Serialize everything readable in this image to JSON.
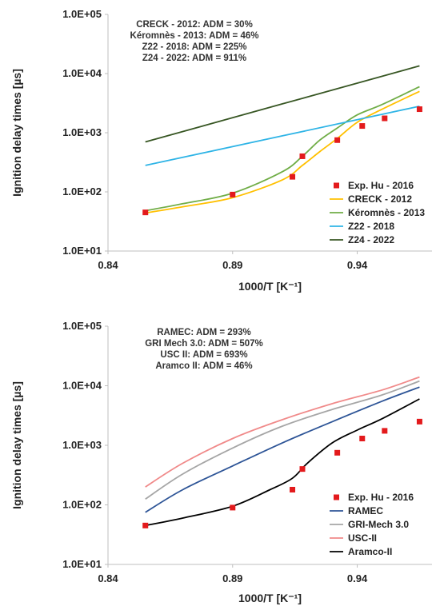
{
  "chart_data": [
    {
      "type": "line",
      "x_scale": "linear",
      "y_scale": "log",
      "xlim": [
        0.84,
        0.97
      ],
      "ylim": [
        10,
        100000
      ],
      "x_ticks": [
        "0.84",
        "0.89",
        "0.94"
      ],
      "x_tick_values": [
        0.84,
        0.89,
        0.94
      ],
      "y_ticks": [
        "1.0E+01",
        "1.0E+02",
        "1.0E+03",
        "1.0E+04",
        "1.0E+05"
      ],
      "y_tick_values": [
        10,
        100,
        1000,
        10000,
        100000
      ],
      "xlabel": "1000/T [K⁻¹]",
      "ylabel": "Ignition delay times [µs]",
      "grid": false,
      "legend_position": "right",
      "annotations": [
        "CRECK - 2012: ADM = 30%",
        "Kéromnès - 2013: ADM = 46%",
        "Z22 - 2018: ADM = 225%",
        "Z24 - 2022: ADM = 911%"
      ],
      "scatter": {
        "name": "Exp. Hu - 2016",
        "color": "#e31a1c",
        "x": [
          0.855,
          0.89,
          0.914,
          0.918,
          0.932,
          0.942,
          0.951,
          0.965
        ],
        "y": [
          45,
          90,
          180,
          400,
          750,
          1300,
          1750,
          2500
        ]
      },
      "series": [
        {
          "name": "CRECK - 2012",
          "color": "#ffc000",
          "x": [
            0.855,
            0.87,
            0.89,
            0.91,
            0.918,
            0.925,
            0.932,
            0.94,
            0.95,
            0.965
          ],
          "y": [
            44,
            56,
            80,
            160,
            280,
            480,
            800,
            1500,
            2500,
            5000
          ]
        },
        {
          "name": "Kéromnès - 2013",
          "color": "#70ad47",
          "x": [
            0.855,
            0.87,
            0.89,
            0.91,
            0.918,
            0.925,
            0.932,
            0.94,
            0.95,
            0.965
          ],
          "y": [
            48,
            63,
            95,
            220,
            400,
            750,
            1200,
            2000,
            3000,
            6000
          ]
        },
        {
          "name": "Z22 - 2018",
          "color": "#2fb4e6",
          "x": [
            0.855,
            0.965
          ],
          "y": [
            280,
            2800
          ]
        },
        {
          "name": "Z24 - 2022",
          "color": "#375623",
          "x": [
            0.855,
            0.965
          ],
          "y": [
            700,
            13500
          ]
        }
      ]
    },
    {
      "type": "line",
      "x_scale": "linear",
      "y_scale": "log",
      "xlim": [
        0.84,
        0.97
      ],
      "ylim": [
        10,
        100000
      ],
      "x_ticks": [
        "0.84",
        "0.89",
        "0.94"
      ],
      "x_tick_values": [
        0.84,
        0.89,
        0.94
      ],
      "y_ticks": [
        "1.0E+01",
        "1.0E+02",
        "1.0E+03",
        "1.0E+04",
        "1.0E+05"
      ],
      "y_tick_values": [
        10,
        100,
        1000,
        10000,
        100000
      ],
      "xlabel": "1000/T [K⁻¹]",
      "ylabel": "Ignition delay times [µs]",
      "grid": false,
      "legend_position": "bottom-right",
      "annotations": [
        "RAMEC: ADM = 293%",
        "GRI Mech 3.0: ADM = 507%",
        "USC II: ADM = 693%",
        "Aramco II: ADM = 46%"
      ],
      "scatter": {
        "name": "Exp. Hu - 2016",
        "color": "#e31a1c",
        "x": [
          0.855,
          0.89,
          0.914,
          0.918,
          0.932,
          0.942,
          0.951,
          0.965
        ],
        "y": [
          45,
          90,
          180,
          400,
          750,
          1300,
          1750,
          2500
        ]
      },
      "series": [
        {
          "name": "RAMEC",
          "color": "#2e5597",
          "x": [
            0.855,
            0.87,
            0.89,
            0.91,
            0.93,
            0.95,
            0.965
          ],
          "y": [
            75,
            180,
            450,
            1100,
            2500,
            5500,
            9500
          ]
        },
        {
          "name": "GRI-Mech 3.0",
          "color": "#a6a6a6",
          "x": [
            0.855,
            0.87,
            0.89,
            0.91,
            0.93,
            0.95,
            0.965
          ],
          "y": [
            125,
            330,
            900,
            2100,
            4000,
            7000,
            12000
          ]
        },
        {
          "name": "USC-II",
          "color": "#f08a8a",
          "x": [
            0.855,
            0.87,
            0.89,
            0.91,
            0.93,
            0.95,
            0.965
          ],
          "y": [
            200,
            500,
            1300,
            2700,
            5000,
            8500,
            14000
          ]
        },
        {
          "name": "Aramco-II",
          "color": "#000000",
          "x": [
            0.855,
            0.87,
            0.89,
            0.905,
            0.914,
            0.92,
            0.93,
            0.94,
            0.95,
            0.965
          ],
          "y": [
            45,
            60,
            95,
            180,
            280,
            500,
            1100,
            1800,
            2800,
            6000
          ]
        }
      ]
    }
  ]
}
